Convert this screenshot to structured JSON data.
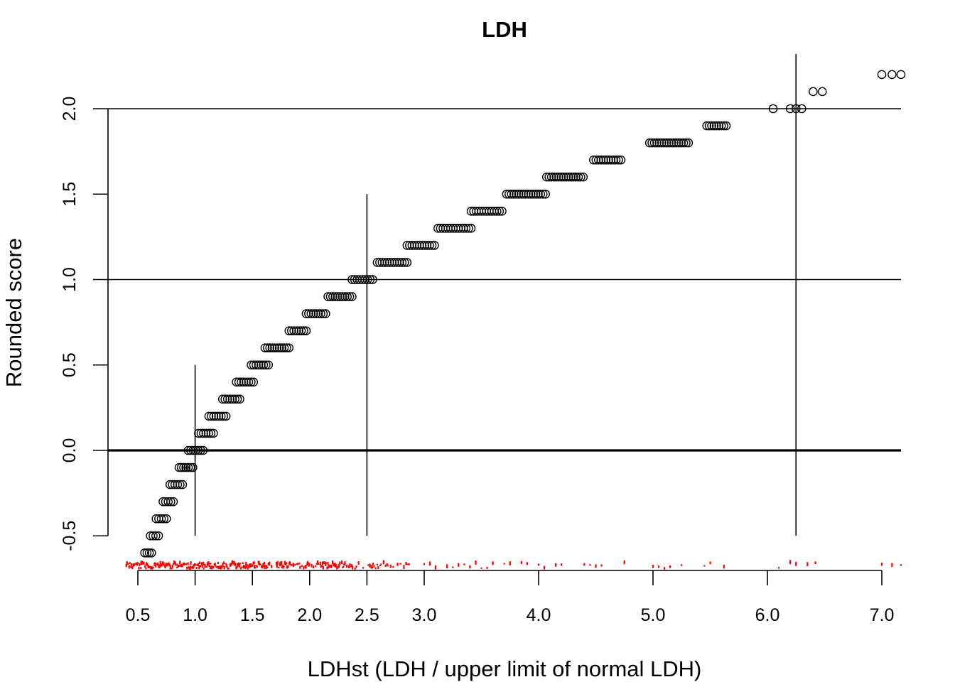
{
  "chart_data": {
    "type": "scatter",
    "title": "LDH",
    "xlabel": "LDHst (LDH / upper limit of normal LDH)",
    "ylabel": "Rounded score",
    "xlim": [
      0.25,
      7.15
    ],
    "ylim": [
      -0.72,
      2.32
    ],
    "x_ticks": [
      0.5,
      1.0,
      1.5,
      2.0,
      2.5,
      3.0,
      4.0,
      5.0,
      6.0,
      7.0
    ],
    "x_tick_labels": [
      "0.5",
      "1.0",
      "1.5",
      "2.0",
      "2.5",
      "3.0",
      "4.0",
      "5.0",
      "6.0",
      "7.0"
    ],
    "y_ticks": [
      -0.5,
      0.0,
      0.5,
      1.0,
      1.5,
      2.0
    ],
    "y_tick_labels": [
      "-0.5",
      "0.0",
      "0.5",
      "1.0",
      "1.5",
      "2.0"
    ],
    "grid": false,
    "reference_lines": {
      "horizontal": [
        2.0,
        1.0,
        0.0
      ],
      "horizontal_emphasis": 0.0,
      "vertical_segments": [
        {
          "x": 1.0,
          "y_from": -0.5,
          "y_to": 0.5
        },
        {
          "x": 2.5,
          "y_from": -0.5,
          "y_to": 1.5
        },
        {
          "x": 6.25,
          "y_from": -0.5,
          "y_to": 2.32
        }
      ]
    },
    "series": [
      {
        "marker": "open-circle",
        "score_groups": [
          {
            "y": -0.6,
            "x_range": [
              0.56,
              0.62
            ]
          },
          {
            "y": -0.5,
            "x_range": [
              0.61,
              0.68
            ]
          },
          {
            "y": -0.4,
            "x_range": [
              0.66,
              0.75
            ]
          },
          {
            "y": -0.3,
            "x_range": [
              0.72,
              0.81
            ]
          },
          {
            "y": -0.2,
            "x_range": [
              0.78,
              0.89
            ]
          },
          {
            "y": -0.1,
            "x_range": [
              0.86,
              0.98
            ]
          },
          {
            "y": 0.0,
            "x_range": [
              0.94,
              1.07
            ]
          },
          {
            "y": 0.1,
            "x_range": [
              1.03,
              1.16
            ]
          },
          {
            "y": 0.2,
            "x_range": [
              1.12,
              1.27
            ]
          },
          {
            "y": 0.3,
            "x_range": [
              1.24,
              1.39
            ]
          },
          {
            "y": 0.4,
            "x_range": [
              1.36,
              1.51
            ]
          },
          {
            "y": 0.5,
            "x_range": [
              1.49,
              1.64
            ]
          },
          {
            "y": 0.6,
            "x_range": [
              1.61,
              1.82
            ]
          },
          {
            "y": 0.7,
            "x_range": [
              1.82,
              1.97
            ]
          },
          {
            "y": 0.8,
            "x_range": [
              1.97,
              2.14
            ]
          },
          {
            "y": 0.9,
            "x_range": [
              2.16,
              2.37
            ]
          },
          {
            "y": 1.0,
            "x_range": [
              2.37,
              2.55
            ]
          },
          {
            "y": 1.1,
            "x_range": [
              2.59,
              2.85
            ]
          },
          {
            "y": 1.2,
            "x_range": [
              2.85,
              3.09
            ]
          },
          {
            "y": 1.3,
            "x_range": [
              3.12,
              3.41
            ]
          },
          {
            "y": 1.4,
            "x_range": [
              3.41,
              3.68
            ]
          },
          {
            "y": 1.5,
            "x_range": [
              3.72,
              4.06
            ]
          },
          {
            "y": 1.6,
            "x_range": [
              4.07,
              4.39
            ]
          },
          {
            "y": 1.7,
            "x_range": [
              4.48,
              4.72
            ]
          },
          {
            "y": 1.8,
            "x_range": [
              4.97,
              5.31
            ]
          },
          {
            "y": 1.9,
            "x_range": [
              5.47,
              5.64
            ]
          },
          {
            "y": 2.0,
            "x_values": [
              6.05,
              6.2,
              6.25,
              6.3
            ]
          },
          {
            "y": 2.1,
            "x_values": [
              6.4,
              6.48
            ]
          },
          {
            "y": 2.2,
            "x_values": [
              7.0,
              7.08,
              7.15
            ]
          }
        ]
      }
    ],
    "rug": {
      "color": "#ff0000",
      "position": "bottom",
      "dense_range": [
        0.4,
        2.9
      ],
      "sparse_values": [
        3.0,
        3.05,
        3.1,
        3.2,
        3.25,
        3.3,
        3.35,
        3.4,
        3.45,
        3.5,
        3.55,
        3.6,
        3.7,
        3.75,
        3.85,
        3.9,
        4.0,
        4.05,
        4.15,
        4.2,
        4.4,
        4.45,
        4.5,
        4.55,
        4.75,
        5.0,
        5.05,
        5.1,
        5.15,
        5.25,
        5.45,
        5.5,
        5.62,
        6.1,
        6.2,
        6.25,
        6.35,
        6.42,
        7.0,
        7.08,
        7.15
      ]
    }
  }
}
